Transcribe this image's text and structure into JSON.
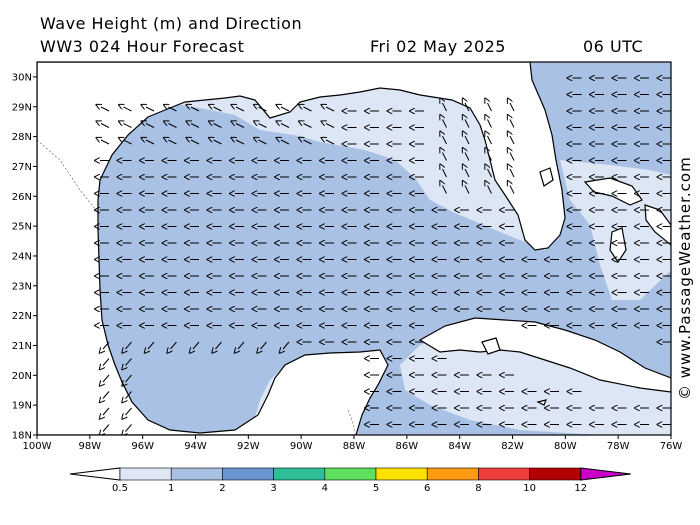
{
  "header": {
    "title": "Wave Height (m) and Direction",
    "model": "WW3 024 Hour Forecast",
    "date": "Fri 02 May 2025",
    "time": "06 UTC"
  },
  "map": {
    "lon_labels": [
      "100W",
      "98W",
      "96W",
      "94W",
      "92W",
      "90W",
      "88W",
      "86W",
      "84W",
      "82W",
      "80W",
      "78W",
      "76W"
    ],
    "lat_labels": [
      "18N",
      "19N",
      "20N",
      "21N",
      "22N",
      "23N",
      "24N",
      "25N",
      "26N",
      "27N",
      "28N",
      "29N",
      "30N"
    ],
    "lon_range": [
      -100,
      -76
    ],
    "lat_range": [
      18,
      30.5
    ],
    "wave_direction": "toward west (easterly swell)"
  },
  "colorbar": {
    "labels": [
      "0.5",
      "1",
      "2",
      "3",
      "4",
      "5",
      "6",
      "8",
      "10",
      "12"
    ],
    "colors": [
      "#ffffff",
      "#dfe7f4",
      "#a8c1e3",
      "#6a95d0",
      "#2fbf98",
      "#5ee05e",
      "#ffe100",
      "#ff9a12",
      "#ef3c3c",
      "#b30000",
      "#c800c8"
    ]
  },
  "watermark": "© www.PassageWeather.com"
}
